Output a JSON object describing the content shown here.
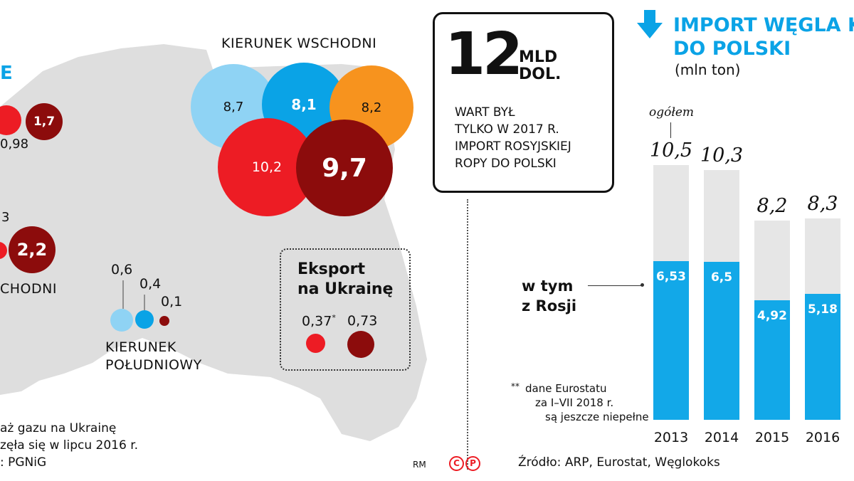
{
  "left": {
    "title_fragment": "E",
    "bubbles_top": [
      "1,7",
      "0,98"
    ],
    "bubbles_mid": [
      "3",
      "2,2"
    ],
    "region_partial": "CHODNI"
  },
  "east": {
    "title": "KIERUNEK WSCHODNI",
    "values": [
      "8,7",
      "8,1",
      "8,2",
      "10,2",
      "9,7"
    ]
  },
  "south": {
    "title_line1": "KIERUNEK",
    "title_line2": "POŁUDNIOWY",
    "values": [
      "0,6",
      "0,4",
      "0,1"
    ]
  },
  "export": {
    "title_line1": "Eksport",
    "title_line2": "na Ukrainę",
    "value1": "0,37",
    "value1_mark": "*",
    "value2": "0,73"
  },
  "notes": {
    "line1": "aż gazu na Ukrainę",
    "line2": "zęła się w lipcu 2016 r.",
    "line3": ": PGNiG"
  },
  "callout": {
    "number": "12",
    "unit_line1": "MLD",
    "unit_line2": "DOL.",
    "text_lines": [
      "WART BYŁ",
      "TYLKO W 2017 R.",
      "IMPORT ROSYJSKIEJ",
      "ROPY DO POLSKI"
    ]
  },
  "footer": {
    "credit": "RM",
    "source": "Źródło: ARP, Eurostat, Węglokoks"
  },
  "colors": {
    "map": "#dedede",
    "light_blue": "#8fd3f4",
    "blue": "#0aa3e6",
    "orange": "#f7931e",
    "red": "#ed1c24",
    "dark_red": "#8c0c0c",
    "bar_gray": "#e6e6e6",
    "bar_blue": "#12a8e8"
  },
  "chart_data": {
    "type": "bar",
    "title_line1": "IMPORT WĘGLA K",
    "title_line2": "DO POLSKI",
    "unit": "(mln ton)",
    "total_label": "ogółem",
    "russia_label_line1": "w tym",
    "russia_label_line2": "z Rosji",
    "footnote_mark": "**",
    "footnote_lines": [
      "dane Eurostatu",
      "za I–VII 2018 r.",
      "są jeszcze niepełne"
    ],
    "categories": [
      "2013",
      "2014",
      "2015",
      "2016"
    ],
    "series": [
      {
        "name": "ogółem",
        "values": [
          10.5,
          10.3,
          8.2,
          8.3
        ],
        "labels": [
          "10,5",
          "10,3",
          "8,2",
          "8,3"
        ]
      },
      {
        "name": "w tym z Rosji",
        "values": [
          6.53,
          6.5,
          4.92,
          5.18
        ],
        "labels": [
          "6,53",
          "6,5",
          "4,92",
          "5,18"
        ]
      }
    ],
    "ylim": [
      0,
      10.5
    ]
  }
}
